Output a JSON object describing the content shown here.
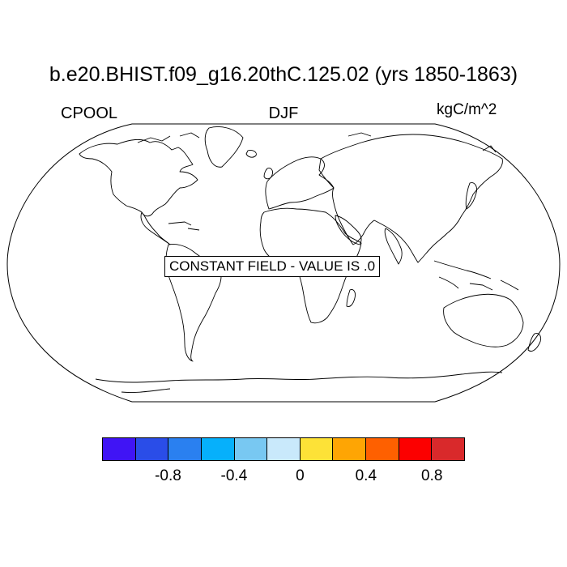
{
  "title": "b.e20.BHIST.f09_g16.20thC.125.02 (yrs 1850-1863)",
  "left_string": "CPOOL",
  "center_string": "DJF",
  "right_string": "kgC/m^2",
  "map": {
    "projection": "Robinson",
    "message": "CONSTANT FIELD - VALUE IS .0"
  },
  "colorbar": {
    "colors": [
      "#4014f5",
      "#2a4de8",
      "#2a80f0",
      "#06b0fb",
      "#78c8f2",
      "#c9e9fb",
      "#fde237",
      "#fea504",
      "#fe6000",
      "#fc0000",
      "#d9292b"
    ],
    "labels": [
      "-0.8",
      "-0.4",
      "0",
      "0.4",
      "0.8"
    ]
  }
}
